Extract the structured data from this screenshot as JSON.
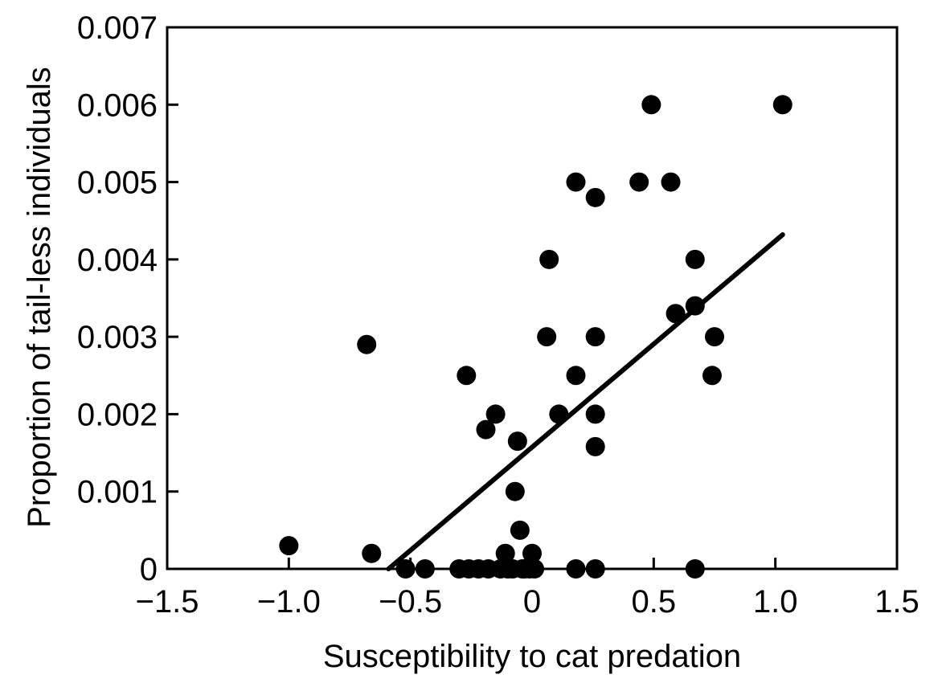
{
  "chart_data": {
    "type": "scatter",
    "title": "",
    "xlabel": "Susceptibility to cat predation",
    "ylabel": "Proportion of tail-less individuals",
    "xlim": [
      -1.5,
      1.5
    ],
    "ylim": [
      0,
      0.007
    ],
    "x_ticks": [
      -1.5,
      -1.0,
      -0.5,
      0,
      0.5,
      1.0,
      1.5
    ],
    "x_tick_labels": [
      "−1.5",
      "−1.0",
      "−0.5",
      "0",
      "0.5",
      "1.0",
      "1.5"
    ],
    "y_ticks": [
      0,
      0.001,
      0.002,
      0.003,
      0.004,
      0.005,
      0.006,
      0.007
    ],
    "y_tick_labels": [
      "0",
      "0.001",
      "0.002",
      "0.003",
      "0.004",
      "0.005",
      "0.006",
      "0.007"
    ],
    "grid": false,
    "legend": "none",
    "marker_color": "#000000",
    "points": [
      {
        "x": -1.0,
        "y": 0.0003
      },
      {
        "x": -0.68,
        "y": 0.0029
      },
      {
        "x": -0.66,
        "y": 0.0002
      },
      {
        "x": -0.52,
        "y": 0.0
      },
      {
        "x": -0.44,
        "y": 0.0
      },
      {
        "x": -0.3,
        "y": 0.0
      },
      {
        "x": -0.27,
        "y": 0.0025
      },
      {
        "x": -0.26,
        "y": 0.0
      },
      {
        "x": -0.22,
        "y": 0.0
      },
      {
        "x": -0.19,
        "y": 0.0018
      },
      {
        "x": -0.18,
        "y": 0.0
      },
      {
        "x": -0.15,
        "y": 0.002
      },
      {
        "x": -0.13,
        "y": 0.0
      },
      {
        "x": -0.11,
        "y": 0.0002
      },
      {
        "x": -0.1,
        "y": 0.0
      },
      {
        "x": -0.08,
        "y": 0.0
      },
      {
        "x": -0.07,
        "y": 0.001
      },
      {
        "x": -0.06,
        "y": 0.00165
      },
      {
        "x": -0.05,
        "y": 0.0005
      },
      {
        "x": -0.04,
        "y": 0.0
      },
      {
        "x": -0.03,
        "y": 0.0
      },
      {
        "x": -0.01,
        "y": 0.0
      },
      {
        "x": 0.0,
        "y": 0.0002
      },
      {
        "x": 0.01,
        "y": 0.0
      },
      {
        "x": 0.06,
        "y": 0.003
      },
      {
        "x": 0.07,
        "y": 0.004
      },
      {
        "x": 0.11,
        "y": 0.002
      },
      {
        "x": 0.18,
        "y": 0.005
      },
      {
        "x": 0.18,
        "y": 0.0025
      },
      {
        "x": 0.18,
        "y": 0.0
      },
      {
        "x": 0.26,
        "y": 0.0048
      },
      {
        "x": 0.26,
        "y": 0.003
      },
      {
        "x": 0.26,
        "y": 0.002
      },
      {
        "x": 0.26,
        "y": 0.00158
      },
      {
        "x": 0.26,
        "y": 0.0
      },
      {
        "x": 0.44,
        "y": 0.005
      },
      {
        "x": 0.49,
        "y": 0.006
      },
      {
        "x": 0.57,
        "y": 0.005
      },
      {
        "x": 0.59,
        "y": 0.0033
      },
      {
        "x": 0.67,
        "y": 0.004
      },
      {
        "x": 0.67,
        "y": 0.0034
      },
      {
        "x": 0.67,
        "y": 0.0
      },
      {
        "x": 0.74,
        "y": 0.0025
      },
      {
        "x": 0.75,
        "y": 0.003
      },
      {
        "x": 1.03,
        "y": 0.006
      }
    ],
    "regression_line": {
      "x": [
        -0.59,
        1.03
      ],
      "y": [
        0.0,
        0.00432
      ]
    }
  }
}
